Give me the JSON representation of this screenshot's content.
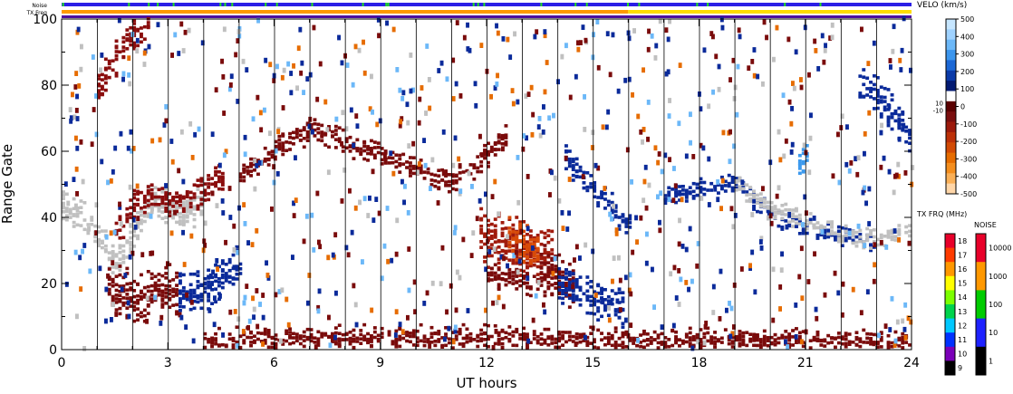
{
  "chart_data": {
    "type": "heatmap",
    "xlabel": "UT hours",
    "ylabel": "Range Gate",
    "xlim": [
      0,
      24
    ],
    "ylim": [
      0,
      100
    ],
    "x_ticks": [
      "0",
      "3",
      "6",
      "9",
      "12",
      "15",
      "18",
      "21",
      "24"
    ],
    "y_ticks": [
      "0",
      "20",
      "40",
      "60",
      "80",
      "100"
    ],
    "scan_hours": [
      1,
      2,
      3,
      4,
      5,
      6,
      7,
      8,
      9,
      10,
      11,
      12,
      13,
      14,
      15,
      16,
      17,
      18,
      19,
      20,
      21,
      22,
      23
    ],
    "top_bars": [
      {
        "label": "Noise",
        "color": "#2a1ee6",
        "accent": "#22dd22"
      },
      {
        "label": "TX Freq",
        "color": "#ff9a00",
        "segments": [
          {
            "from": 0,
            "to": 16,
            "color": "#ff9a00"
          },
          {
            "from": 16,
            "to": 24,
            "color": "#ffdd00"
          }
        ]
      }
    ],
    "velocity_scale": {
      "title": "VELO (km/s)",
      "ticks": [
        "500",
        "400",
        "300",
        "200",
        "100",
        "0",
        "-100",
        "-200",
        "-300",
        "-400",
        "-500"
      ],
      "side_ticks": [
        "10",
        "-10"
      ],
      "colors": [
        "#c6e6ff",
        "#9fd2ff",
        "#6cb8f8",
        "#3c96ee",
        "#1c68d6",
        "#0a3aa8",
        "#031a72",
        "#ffffff",
        "#5a0000",
        "#7a0e0e",
        "#9c1a0c",
        "#bc3008",
        "#d24a04",
        "#e66c00",
        "#f48e1e",
        "#fab058",
        "#ffd6a8"
      ]
    },
    "txfreq_scale": {
      "title": "TX FRQ (MHz)",
      "ticks": [
        "18",
        "17",
        "16",
        "15",
        "14",
        "13",
        "12",
        "11",
        "10",
        "9"
      ],
      "colors": [
        "#e8002a",
        "#ff3b00",
        "#ff9800",
        "#ffff00",
        "#7cff00",
        "#00d34c",
        "#00c8ff",
        "#0032ff",
        "#7b00b8",
        "#000000"
      ]
    },
    "noise_scale": {
      "title": "NOISE",
      "ticks": [
        "10000",
        "1000",
        "100",
        "10",
        "1"
      ],
      "colors": [
        "#e8002a",
        "#ff9800",
        "#00cc00",
        "#1e22ff",
        "#000000"
      ]
    },
    "ground_scatter_color": "#c0c0c0",
    "features": [
      {
        "name": "ground scatter",
        "t": [
          0,
          0.5,
          1,
          1.5,
          2,
          2.5,
          3,
          3.5,
          4
        ],
        "g": [
          42,
          40,
          34,
          26,
          35,
          45,
          42,
          40,
          44
        ],
        "width": 6,
        "color": "#c0c0c0"
      },
      {
        "name": "negative band early",
        "t": [
          1.5,
          2,
          2.5,
          3,
          3.5,
          4,
          4.5
        ],
        "g": [
          35,
          43,
          47,
          44,
          45,
          48,
          52
        ],
        "width": 5,
        "color": "#8a0d0d"
      },
      {
        "name": "far range early",
        "t": [
          1,
          1.5,
          2,
          2.5
        ],
        "g": [
          78,
          88,
          96,
          99
        ],
        "width": 6,
        "color": "#8a0d0d"
      },
      {
        "name": "negative band low",
        "t": [
          1.3,
          2,
          2.5,
          3,
          3.3
        ],
        "g": [
          18,
          15,
          16,
          17,
          16
        ],
        "width": 9,
        "color": "#7a0b0b"
      },
      {
        "name": "positive band low",
        "t": [
          3.3,
          3.8,
          4.2,
          4.6,
          5
        ],
        "g": [
          16,
          17,
          19,
          22,
          26
        ],
        "width": 7,
        "color": "#0a2a9a"
      },
      {
        "name": "mid range drift",
        "t": [
          5,
          6,
          7,
          8,
          9,
          10,
          11,
          12,
          12.5
        ],
        "g": [
          52,
          60,
          66,
          62,
          58,
          54,
          50,
          58,
          64
        ],
        "width": 4,
        "color": "#7a0b0b"
      },
      {
        "name": "strong negative patch",
        "t": [
          11.8,
          12.3,
          12.8,
          13.3,
          13.8
        ],
        "g": [
          33,
          32,
          30,
          29,
          28
        ],
        "width": 10,
        "color": "#a01a0c"
      },
      {
        "name": "orange core",
        "t": [
          12.6,
          13,
          13.4
        ],
        "g": [
          34,
          32,
          30
        ],
        "width": 7,
        "color": "#d84a08"
      },
      {
        "name": "negative tail",
        "t": [
          13.5,
          14,
          14.4
        ],
        "g": [
          26,
          22,
          18
        ],
        "width": 7,
        "color": "#7a0b0b"
      },
      {
        "name": "lower cluster",
        "t": [
          12,
          12.5,
          13,
          13.5,
          14
        ],
        "g": [
          22,
          21,
          20,
          19,
          18
        ],
        "width": 4,
        "color": "#7a0b0b"
      },
      {
        "name": "positive streak",
        "t": [
          14,
          14.4,
          14.8,
          15.3,
          15.8
        ],
        "g": [
          20,
          18,
          16,
          14,
          12
        ],
        "width": 7,
        "color": "#0a2a9a"
      },
      {
        "name": "positive diagonal",
        "t": [
          14.2,
          14.8,
          15.4,
          16
        ],
        "g": [
          58,
          50,
          44,
          36
        ],
        "width": 5,
        "color": "#0a2a9a"
      },
      {
        "name": "late echoes",
        "t": [
          17,
          18,
          19,
          20,
          21,
          22,
          23
        ],
        "g": [
          46,
          48,
          50,
          40,
          36,
          34,
          32
        ],
        "width": 3,
        "color": "#0a2a9a"
      },
      {
        "name": "late ground scatter",
        "t": [
          19,
          20,
          21,
          22,
          23,
          24
        ],
        "g": [
          50,
          42,
          38,
          34,
          33,
          36
        ],
        "width": 3,
        "color": "#c0c0c0"
      },
      {
        "name": "light blue patch",
        "t": [
          20.8,
          21,
          21.1
        ],
        "g": [
          56,
          59,
          63
        ],
        "width": 5,
        "color": "#3c9aee"
      },
      {
        "name": "late far range",
        "t": [
          22.5,
          23,
          23.5,
          24
        ],
        "g": [
          80,
          76,
          70,
          64
        ],
        "width": 6,
        "color": "#0a2a9a"
      },
      {
        "name": "near range",
        "t": [
          4,
          8,
          12,
          16,
          20,
          24
        ],
        "g": [
          2,
          3,
          3,
          2,
          2,
          1
        ],
        "width": 4,
        "color": "#7a0b0b"
      }
    ]
  }
}
